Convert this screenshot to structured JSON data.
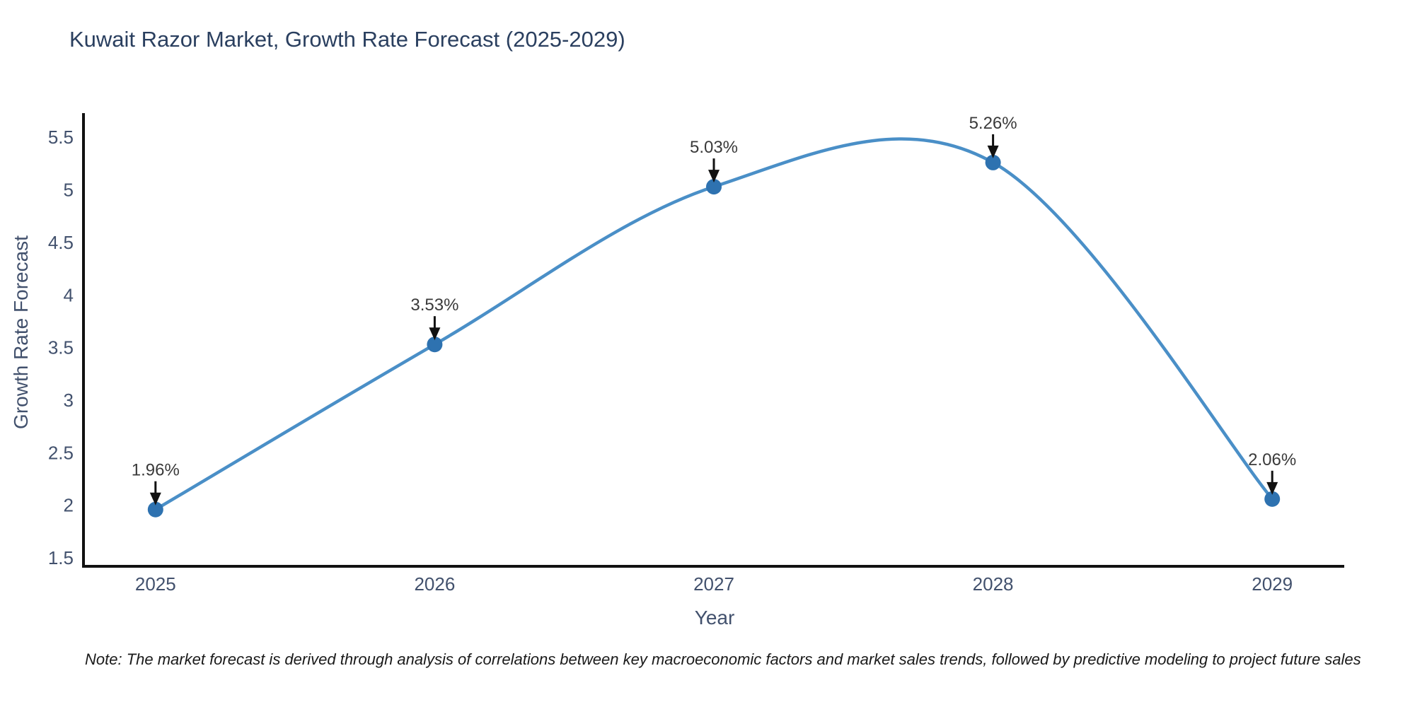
{
  "chart_data": {
    "type": "line",
    "title": "Kuwait Razor Market, Growth Rate Forecast (2025-2029)",
    "xlabel": "Year",
    "ylabel": "Growth Rate Forecast",
    "x": [
      2025,
      2026,
      2027,
      2028,
      2029
    ],
    "series": [
      {
        "name": "Growth Rate Forecast",
        "values": [
          1.96,
          3.53,
          5.03,
          5.26,
          2.06
        ],
        "point_labels": [
          "1.96%",
          "3.53%",
          "5.03%",
          "5.26%",
          "2.06%"
        ]
      }
    ],
    "line_shape": "spline",
    "yticks": [
      1.5,
      2,
      2.5,
      3,
      3.5,
      4,
      4.5,
      5,
      5.5
    ],
    "ylim": [
      1.42,
      5.73
    ],
    "xlim": [
      2024.742,
      2029.258
    ],
    "grid": false,
    "legend": "none",
    "colors": {
      "line": "#4a8fc7",
      "marker": "#2e72b0",
      "spine": "#111111",
      "arrow": "#111111",
      "axis_text": "#42516d",
      "title_text": "#2a3f5f",
      "annotation_text": "#3a3a3a",
      "background": "#ffffff"
    }
  },
  "note": "Note: The market forecast is derived through analysis of correlations between key macroeconomic factors and market sales trends, followed by predictive modeling to project future sales"
}
